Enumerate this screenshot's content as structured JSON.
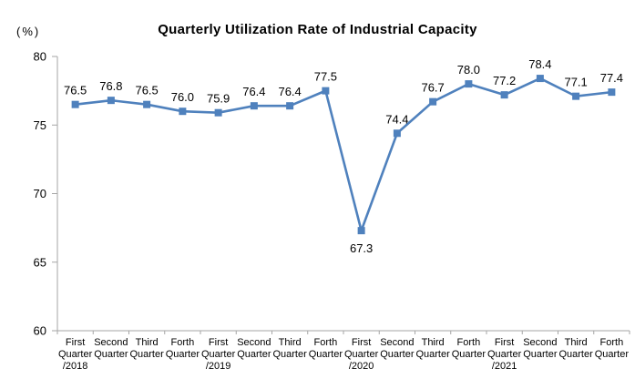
{
  "chart_data": {
    "type": "line",
    "title": "Quarterly Utilization Rate of Industrial Capacity",
    "unit_label": "(%)",
    "categories": [
      [
        "First",
        "Quarter",
        "/2018"
      ],
      [
        "Second",
        "Quarter"
      ],
      [
        "Third",
        "Quarter"
      ],
      [
        "Forth",
        "Quarter"
      ],
      [
        "First",
        "Quarter",
        "/2019"
      ],
      [
        "Second",
        "Quarter"
      ],
      [
        "Third",
        "Quarter"
      ],
      [
        "Forth",
        "Quarter"
      ],
      [
        "First",
        "Quarter",
        "/2020"
      ],
      [
        "Second",
        "Quarter"
      ],
      [
        "Third",
        "Quarter"
      ],
      [
        "Forth",
        "Quarter"
      ],
      [
        "First",
        "Quarter",
        "/2021"
      ],
      [
        "Second",
        "Quarter"
      ],
      [
        "Third",
        "Quarter"
      ],
      [
        "Forth",
        "Quarter"
      ]
    ],
    "values": [
      76.5,
      76.8,
      76.5,
      76.0,
      75.9,
      76.4,
      76.4,
      77.5,
      67.3,
      74.4,
      76.7,
      78.0,
      77.2,
      78.4,
      77.1,
      77.4
    ],
    "data_labels": [
      "76.5",
      "76.8",
      "76.5",
      "76.0",
      "75.9",
      "76.4",
      "76.4",
      "77.5",
      "67.3",
      "74.4",
      "76.7",
      "78.0",
      "77.2",
      "78.4",
      "77.1",
      "77.4"
    ],
    "ylim": [
      60,
      80
    ],
    "yticks": [
      60,
      65,
      70,
      75,
      80
    ],
    "grid": false,
    "legend": "none",
    "series_color": "#4F81BD",
    "axis_color": "#A6A6A6",
    "text_color": "#000000"
  }
}
